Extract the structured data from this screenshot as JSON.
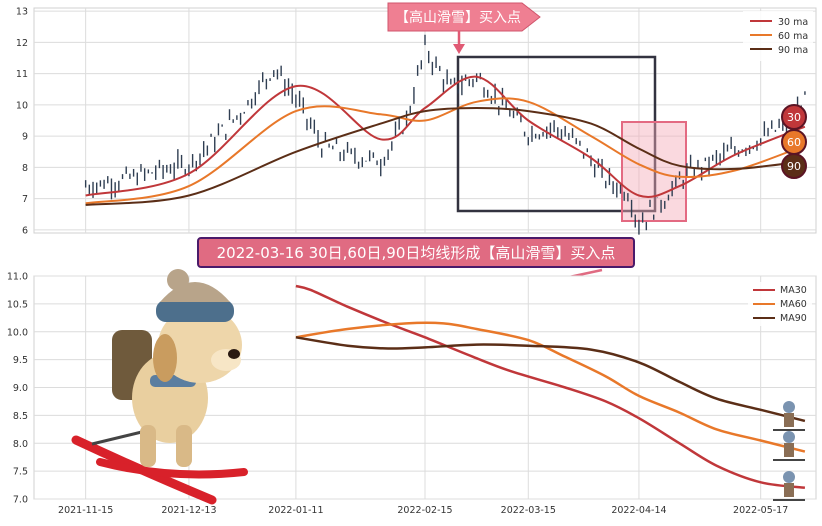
{
  "top_panel": {
    "y_ticks": [
      "6",
      "7",
      "8",
      "9",
      "10",
      "11",
      "12",
      "13"
    ],
    "legend": [
      "30 ma",
      "60 ma",
      "90 ma"
    ],
    "callout": "【高山滑雪】买入点",
    "badges": [
      "30",
      "60",
      "90"
    ]
  },
  "banner": {
    "text": "2022-03-16 30日,60日,90日均线形成【高山滑雪】买入点"
  },
  "bottom_panel": {
    "y_ticks": [
      "7.0",
      "7.5",
      "8.0",
      "8.5",
      "9.0",
      "9.5",
      "10.0",
      "10.5",
      "11.0"
    ],
    "x_ticks": [
      "2021-11-15",
      "2021-12-13",
      "2022-01-11",
      "2022-02-15",
      "2022-03-15",
      "2022-04-14",
      "2022-05-17"
    ],
    "legend": [
      "MA30",
      "MA60",
      "MA90"
    ]
  },
  "colors": {
    "ma30": "#c0373a",
    "ma60": "#e8782a",
    "ma90": "#5b2e17",
    "candle": "#2f3e52",
    "banner_bg": "#e06b82",
    "banner_border": "#4a1a6a",
    "callout_bg": "#ef7f92",
    "grid": "#dcdcdc"
  },
  "chart_data": [
    {
      "type": "line",
      "panel": "top",
      "ylim": [
        5.9,
        13.1
      ],
      "x_range": [
        "2021-11-01",
        "2022-06-01"
      ],
      "candles_close": [
        [
          "2021-11-15",
          7.4
        ],
        [
          "2021-11-25",
          7.6
        ],
        [
          "2021-12-05",
          7.9
        ],
        [
          "2021-12-13",
          8.1
        ],
        [
          "2021-12-20",
          8.9
        ],
        [
          "2021-12-28",
          9.9
        ],
        [
          "2022-01-05",
          11.2
        ],
        [
          "2022-01-11",
          10.2
        ],
        [
          "2022-01-18",
          8.7
        ],
        [
          "2022-01-25",
          8.4
        ],
        [
          "2022-02-03",
          8.2
        ],
        [
          "2022-02-10",
          9.5
        ],
        [
          "2022-02-15",
          11.8
        ],
        [
          "2022-02-22",
          10.5
        ],
        [
          "2022-03-01",
          10.9
        ],
        [
          "2022-03-08",
          10.0
        ],
        [
          "2022-03-15",
          9.1
        ],
        [
          "2022-03-22",
          9.3
        ],
        [
          "2022-03-29",
          8.7
        ],
        [
          "2022-04-05",
          7.6
        ],
        [
          "2022-04-11",
          7.2
        ],
        [
          "2022-04-14",
          6.2
        ],
        [
          "2022-04-20",
          6.9
        ],
        [
          "2022-04-27",
          7.8
        ],
        [
          "2022-05-04",
          8.2
        ],
        [
          "2022-05-11",
          8.6
        ],
        [
          "2022-05-17",
          8.9
        ],
        [
          "2022-05-24",
          9.4
        ],
        [
          "2022-05-29",
          10.1
        ]
      ],
      "series": [
        {
          "name": "30 ma",
          "x": [
            "2021-11-15",
            "2021-12-13",
            "2022-01-11",
            "2022-02-03",
            "2022-02-15",
            "2022-03-01",
            "2022-03-15",
            "2022-04-01",
            "2022-04-14",
            "2022-04-25",
            "2022-05-10",
            "2022-05-29"
          ],
          "y": [
            7.1,
            7.8,
            10.6,
            8.9,
            9.9,
            10.9,
            9.5,
            8.3,
            7.1,
            7.4,
            8.4,
            9.3
          ]
        },
        {
          "name": "60 ma",
          "x": [
            "2021-11-15",
            "2021-12-13",
            "2022-01-11",
            "2022-02-03",
            "2022-02-15",
            "2022-03-01",
            "2022-03-15",
            "2022-04-01",
            "2022-04-14",
            "2022-04-25",
            "2022-05-10",
            "2022-05-29"
          ],
          "y": [
            6.85,
            7.4,
            9.8,
            9.7,
            9.5,
            10.1,
            10.1,
            9.0,
            8.1,
            7.7,
            7.9,
            8.7
          ]
        },
        {
          "name": "90 ma",
          "x": [
            "2021-11-15",
            "2021-12-13",
            "2022-01-11",
            "2022-02-03",
            "2022-02-15",
            "2022-03-01",
            "2022-03-15",
            "2022-04-01",
            "2022-04-14",
            "2022-04-25",
            "2022-05-10",
            "2022-05-29"
          ],
          "y": [
            6.8,
            7.1,
            8.5,
            9.4,
            9.8,
            9.9,
            9.8,
            9.4,
            8.6,
            8.05,
            7.95,
            8.2
          ]
        }
      ]
    },
    {
      "type": "line",
      "panel": "bottom",
      "ylim": [
        7.0,
        11.0
      ],
      "series": [
        {
          "name": "MA30",
          "x": [
            "2022-01-11",
            "2022-01-15",
            "2022-01-25",
            "2022-02-05",
            "2022-02-15",
            "2022-02-28",
            "2022-03-10",
            "2022-03-25",
            "2022-04-05",
            "2022-04-14",
            "2022-04-25",
            "2022-05-05",
            "2022-05-17",
            "2022-05-29"
          ],
          "y": [
            10.82,
            10.75,
            10.45,
            10.15,
            9.9,
            9.55,
            9.3,
            9.0,
            8.75,
            8.45,
            8.0,
            7.6,
            7.3,
            7.2
          ]
        },
        {
          "name": "MA60",
          "x": [
            "2022-01-11",
            "2022-01-25",
            "2022-02-10",
            "2022-02-20",
            "2022-03-01",
            "2022-03-15",
            "2022-03-25",
            "2022-04-05",
            "2022-04-14",
            "2022-04-25",
            "2022-05-05",
            "2022-05-17",
            "2022-05-29"
          ],
          "y": [
            9.9,
            10.05,
            10.15,
            10.15,
            10.05,
            9.85,
            9.55,
            9.2,
            8.85,
            8.55,
            8.25,
            8.05,
            7.85
          ]
        },
        {
          "name": "MA90",
          "x": [
            "2022-01-11",
            "2022-01-25",
            "2022-02-05",
            "2022-02-15",
            "2022-03-01",
            "2022-03-15",
            "2022-04-01",
            "2022-04-14",
            "2022-04-25",
            "2022-05-05",
            "2022-05-17",
            "2022-05-29"
          ],
          "y": [
            9.9,
            9.75,
            9.7,
            9.72,
            9.77,
            9.75,
            9.68,
            9.45,
            9.1,
            8.8,
            8.6,
            8.4
          ]
        }
      ]
    }
  ]
}
